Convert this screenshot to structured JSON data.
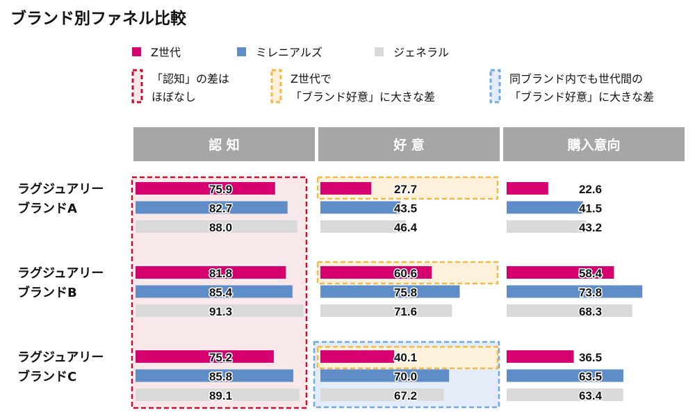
{
  "chart_data": {
    "type": "bar",
    "title": "ブランド別ファネル比較",
    "stages": [
      "認 知",
      "好 意",
      "購入意向"
    ],
    "categories": [
      [
        "ラグジュアリー",
        "ブランドA"
      ],
      [
        "ラグジュアリー",
        "ブランドB"
      ],
      [
        "ラグジュアリー",
        "ブランドC"
      ]
    ],
    "series": [
      {
        "name": "Z世代",
        "color": "#d6006f",
        "values": [
          [
            75.9,
            27.7,
            22.6
          ],
          [
            81.8,
            60.6,
            58.4
          ],
          [
            75.2,
            40.1,
            36.5
          ]
        ]
      },
      {
        "name": "ミレニアルズ",
        "color": "#5f8dc8",
        "values": [
          [
            82.7,
            43.5,
            41.5
          ],
          [
            85.4,
            75.8,
            73.8
          ],
          [
            85.8,
            70.0,
            63.5
          ]
        ]
      },
      {
        "name": "ジェネラル",
        "color": "#d9d9d9",
        "values": [
          [
            88.0,
            46.4,
            43.2
          ],
          [
            91.3,
            71.6,
            68.3
          ],
          [
            89.1,
            67.2,
            63.4
          ]
        ]
      }
    ],
    "xlim": [
      0,
      100
    ],
    "legend": "top",
    "annotations": [
      {
        "lines": [
          "「認知」の差は",
          "ほぼなし"
        ],
        "border": "#c8102e",
        "fill": "#f9e8ea"
      },
      {
        "lines": [
          "Z世代で",
          "「ブランド好意」に大きな差"
        ],
        "border": "#f5b942",
        "fill": "#fdf1dc"
      },
      {
        "lines": [
          "同ブランド内でも世代間の",
          "「ブランド好意」に大きな差"
        ],
        "border": "#6fa8e6",
        "fill": "#e3ecf8"
      }
    ],
    "header_color": "#a6a6a6"
  }
}
